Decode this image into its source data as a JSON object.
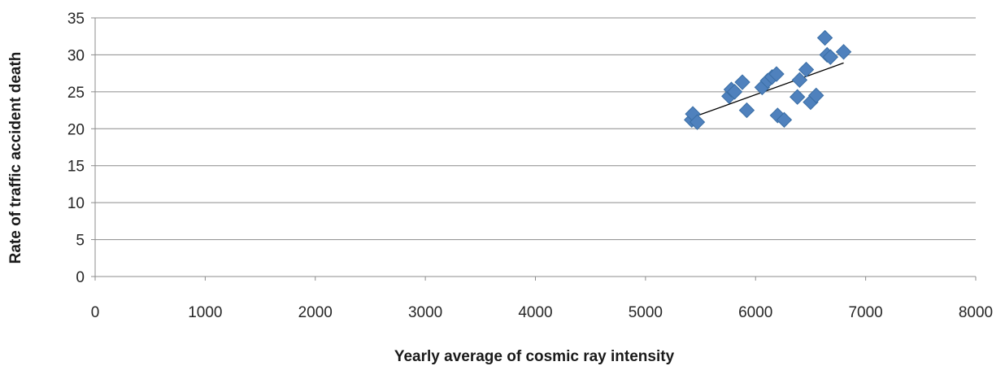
{
  "chart_data": {
    "type": "scatter",
    "title": "",
    "xlabel": "Yearly average of cosmic ray intensity",
    "ylabel": "Rate of traffic accident death",
    "xlim": [
      0,
      8000
    ],
    "ylim": [
      0,
      35
    ],
    "x_ticks": [
      "0",
      "1000",
      "2000",
      "3000",
      "4000",
      "5000",
      "6000",
      "7000",
      "8000"
    ],
    "y_ticks": [
      "0",
      "5",
      "10",
      "15",
      "20",
      "25",
      "30",
      "35"
    ],
    "grid": "horizontal",
    "legend": "none",
    "marker": "diamond",
    "series": [
      {
        "points": [
          [
            5420,
            21.2
          ],
          [
            5430,
            22.0
          ],
          [
            5470,
            20.9
          ],
          [
            5760,
            24.4
          ],
          [
            5780,
            25.3
          ],
          [
            5810,
            25.0
          ],
          [
            5880,
            26.3
          ],
          [
            5920,
            22.5
          ],
          [
            6060,
            25.6
          ],
          [
            6110,
            26.5
          ],
          [
            6150,
            27.0
          ],
          [
            6190,
            27.4
          ],
          [
            6200,
            21.8
          ],
          [
            6260,
            21.2
          ],
          [
            6380,
            24.3
          ],
          [
            6400,
            26.6
          ],
          [
            6460,
            28.0
          ],
          [
            6500,
            23.6
          ],
          [
            6550,
            24.5
          ],
          [
            6630,
            32.3
          ],
          [
            6650,
            30.0
          ],
          [
            6680,
            29.7
          ],
          [
            6800,
            30.4
          ]
        ]
      }
    ],
    "trendline": {
      "x": [
        5420,
        6800
      ],
      "y": [
        21.5,
        28.9
      ]
    },
    "colors": {
      "marker": "#4f81bd",
      "marker_edge": "#3a6ea5",
      "trendline": "#000000",
      "grid": "#8c8c8c",
      "axis": "#8c8c8c"
    }
  }
}
